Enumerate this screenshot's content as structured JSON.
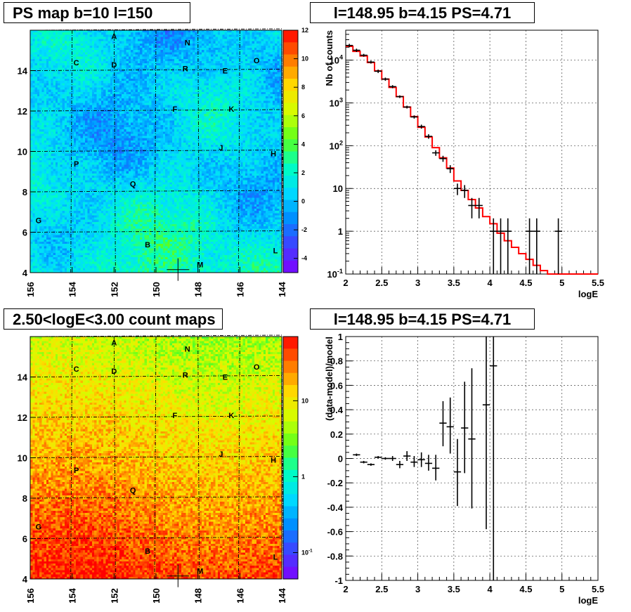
{
  "panels": {
    "map_top": {
      "title": "PS map b=10 l=150",
      "xticks": [
        "156",
        "154",
        "152",
        "150",
        "148",
        "146",
        "144"
      ],
      "yticks": [
        "4",
        "6",
        "8",
        "10",
        "12",
        "14"
      ],
      "colorbar_ticks": [
        "12",
        "10",
        "8",
        "6",
        "4",
        "2",
        "0",
        "-2",
        "-4"
      ],
      "sources": [
        {
          "label": "A",
          "l": 152.0,
          "b": 15.7
        },
        {
          "label": "N",
          "l": 148.5,
          "b": 15.4
        },
        {
          "label": "C",
          "l": 153.8,
          "b": 14.4
        },
        {
          "label": "D",
          "l": 152.0,
          "b": 14.3
        },
        {
          "label": "O",
          "l": 145.2,
          "b": 14.5
        },
        {
          "label": "R",
          "l": 148.6,
          "b": 14.1
        },
        {
          "label": "E",
          "l": 146.7,
          "b": 14.0
        },
        {
          "label": "F",
          "l": 149.1,
          "b": 12.1
        },
        {
          "label": "K",
          "l": 146.4,
          "b": 12.1
        },
        {
          "label": "J",
          "l": 146.9,
          "b": 10.2
        },
        {
          "label": "H",
          "l": 144.4,
          "b": 9.9
        },
        {
          "label": "P",
          "l": 153.8,
          "b": 9.4
        },
        {
          "label": "Q",
          "l": 151.1,
          "b": 8.4
        },
        {
          "label": "G",
          "l": 155.6,
          "b": 6.6
        },
        {
          "label": "B",
          "l": 150.4,
          "b": 5.4
        },
        {
          "label": "L",
          "l": 144.3,
          "b": 5.1
        },
        {
          "label": "M",
          "l": 147.9,
          "b": 4.4
        }
      ]
    },
    "spectrum": {
      "title": "l=148.95 b=4.15 PS=4.71"
    },
    "map_bottom": {
      "title": "2.50<logE<3.00 count maps",
      "colorbar_ticks": [
        "10",
        "1",
        "10-1"
      ]
    },
    "residual": {
      "title": "l=148.95 b=4.15 PS=4.71"
    }
  },
  "chart_data": [
    {
      "type": "heatmap",
      "title": "PS map b=10 l=150",
      "x_range": [
        156,
        144
      ],
      "y_range": [
        4,
        16
      ],
      "color_range": [
        -5,
        12
      ],
      "crosshair": {
        "l": 148.95,
        "b": 4.15
      }
    },
    {
      "type": "line",
      "title": "l=148.95 b=4.15 PS=4.71",
      "xlabel": "logE",
      "ylabel": "Nb of counts",
      "xlim": [
        2,
        5.5
      ],
      "ylim": [
        0.1,
        50000
      ],
      "yscale": "log",
      "xticks": [
        "2",
        "2.5",
        "3",
        "3.5",
        "4",
        "4.5",
        "5",
        "5.5"
      ],
      "yticks": [
        "10-1",
        "1",
        "10",
        "102",
        "103",
        "104"
      ],
      "grid": true,
      "series": [
        {
          "color": "#000000",
          "points": [
            {
              "x": 2.05,
              "y": 22000,
              "lo": 20000,
              "hi": 24000
            },
            {
              "x": 2.15,
              "y": 17000,
              "lo": 15500,
              "hi": 18500
            },
            {
              "x": 2.25,
              "y": 13000,
              "lo": 12000,
              "hi": 14000
            },
            {
              "x": 2.35,
              "y": 9000,
              "lo": 8300,
              "hi": 9700
            },
            {
              "x": 2.45,
              "y": 5500,
              "lo": 5000,
              "hi": 6000
            },
            {
              "x": 2.55,
              "y": 3600,
              "lo": 3300,
              "hi": 3900
            },
            {
              "x": 2.65,
              "y": 2400,
              "lo": 2200,
              "hi": 2600
            },
            {
              "x": 2.75,
              "y": 1400,
              "lo": 1300,
              "hi": 1500
            },
            {
              "x": 2.85,
              "y": 800,
              "lo": 740,
              "hi": 860
            },
            {
              "x": 2.95,
              "y": 470,
              "lo": 430,
              "hi": 510
            },
            {
              "x": 3.05,
              "y": 280,
              "lo": 250,
              "hi": 310
            },
            {
              "x": 3.15,
              "y": 165,
              "lo": 145,
              "hi": 185
            },
            {
              "x": 3.25,
              "y": 68,
              "lo": 58,
              "hi": 78
            },
            {
              "x": 3.35,
              "y": 50,
              "lo": 42,
              "hi": 58
            },
            {
              "x": 3.45,
              "y": 29,
              "lo": 23,
              "hi": 35
            },
            {
              "x": 3.55,
              "y": 10,
              "lo": 7,
              "hi": 13
            },
            {
              "x": 3.65,
              "y": 9,
              "lo": 6,
              "hi": 12
            },
            {
              "x": 3.75,
              "y": 4,
              "lo": 2,
              "hi": 6
            },
            {
              "x": 3.85,
              "y": 4,
              "lo": 2,
              "hi": 6
            },
            {
              "x": 4.05,
              "y": 1,
              "lo": 0.1,
              "hi": 2
            },
            {
              "x": 4.15,
              "y": 1,
              "lo": 0.1,
              "hi": 2
            },
            {
              "x": 4.25,
              "y": 1,
              "lo": 0.1,
              "hi": 2
            },
            {
              "x": 4.55,
              "y": 1,
              "lo": 0.1,
              "hi": 2
            },
            {
              "x": 4.65,
              "y": 1,
              "lo": 0.1,
              "hi": 2
            },
            {
              "x": 4.95,
              "y": 1,
              "lo": 0.1,
              "hi": 2
            }
          ]
        },
        {
          "color": "#ff0000",
          "step_edges": [
            2.0,
            2.1,
            2.2,
            2.3,
            2.4,
            2.5,
            2.6,
            2.7,
            2.8,
            2.9,
            3.0,
            3.1,
            3.2,
            3.3,
            3.4,
            3.5,
            3.6,
            3.7,
            3.8,
            3.9,
            4.0,
            4.1,
            4.2,
            4.3,
            4.4,
            4.5,
            4.6,
            4.7,
            4.8,
            4.9,
            5.0,
            5.1,
            5.2,
            5.3,
            5.4,
            5.5
          ],
          "values": [
            21000,
            16000,
            12500,
            8800,
            5600,
            3600,
            2300,
            1400,
            800,
            480,
            270,
            160,
            90,
            52,
            30,
            15,
            9,
            5.5,
            3.5,
            2.2,
            1.5,
            0.9,
            0.6,
            0.42,
            0.3,
            0.22,
            0.16,
            0.12,
            0.1,
            0.1,
            0.1,
            0.1,
            0.1,
            0.1,
            0.1
          ]
        }
      ]
    },
    {
      "type": "heatmap",
      "title": "2.50<logE<3.00 count maps",
      "x_range": [
        156,
        144
      ],
      "y_range": [
        4,
        16
      ],
      "color_scale": "log",
      "crosshair": {
        "l": 148.95,
        "b": 4.15
      }
    },
    {
      "type": "scatter",
      "title": "l=148.95 b=4.15 PS=4.71",
      "xlabel": "logE",
      "ylabel": "(data-model)/model",
      "xlim": [
        2,
        5.5
      ],
      "ylim": [
        -1,
        1
      ],
      "xticks": [
        "2",
        "2.5",
        "3",
        "3.5",
        "4",
        "4.5",
        "5",
        "5.5"
      ],
      "yticks": [
        "-1",
        "-0.8",
        "-0.6",
        "-0.4",
        "-0.2",
        "0",
        "0.2",
        "0.4",
        "0.6",
        "0.8",
        "1"
      ],
      "grid": true,
      "points": [
        {
          "x": 2.15,
          "y": 0.03,
          "lo": 0.02,
          "hi": 0.04
        },
        {
          "x": 2.25,
          "y": -0.03,
          "lo": -0.04,
          "hi": -0.02
        },
        {
          "x": 2.35,
          "y": -0.05,
          "lo": -0.06,
          "hi": -0.04
        },
        {
          "x": 2.45,
          "y": 0.01,
          "lo": 0.0,
          "hi": 0.02
        },
        {
          "x": 2.55,
          "y": 0.0,
          "lo": -0.01,
          "hi": 0.01
        },
        {
          "x": 2.65,
          "y": 0.0,
          "lo": -0.02,
          "hi": 0.02
        },
        {
          "x": 2.75,
          "y": -0.05,
          "lo": -0.08,
          "hi": -0.02
        },
        {
          "x": 2.85,
          "y": 0.02,
          "lo": -0.02,
          "hi": 0.06
        },
        {
          "x": 2.95,
          "y": -0.03,
          "lo": -0.07,
          "hi": 0.02
        },
        {
          "x": 3.05,
          "y": -0.01,
          "lo": -0.07,
          "hi": 0.05
        },
        {
          "x": 3.15,
          "y": -0.04,
          "lo": -0.1,
          "hi": 0.03
        },
        {
          "x": 3.25,
          "y": -0.08,
          "lo": -0.18,
          "hi": 0.03
        },
        {
          "x": 3.35,
          "y": 0.29,
          "lo": 0.1,
          "hi": 0.47
        },
        {
          "x": 3.45,
          "y": 0.26,
          "lo": 0.04,
          "hi": 0.5
        },
        {
          "x": 3.55,
          "y": -0.11,
          "lo": -0.39,
          "hi": 0.16
        },
        {
          "x": 3.65,
          "y": 0.25,
          "lo": -0.12,
          "hi": 0.63
        },
        {
          "x": 3.75,
          "y": 0.16,
          "lo": -0.41,
          "hi": 0.74
        },
        {
          "x": 3.95,
          "y": 0.44,
          "lo": -0.58,
          "hi": 1.0
        },
        {
          "x": 4.05,
          "y": 0.76,
          "lo": -1.0,
          "hi": 1.0
        }
      ]
    }
  ]
}
